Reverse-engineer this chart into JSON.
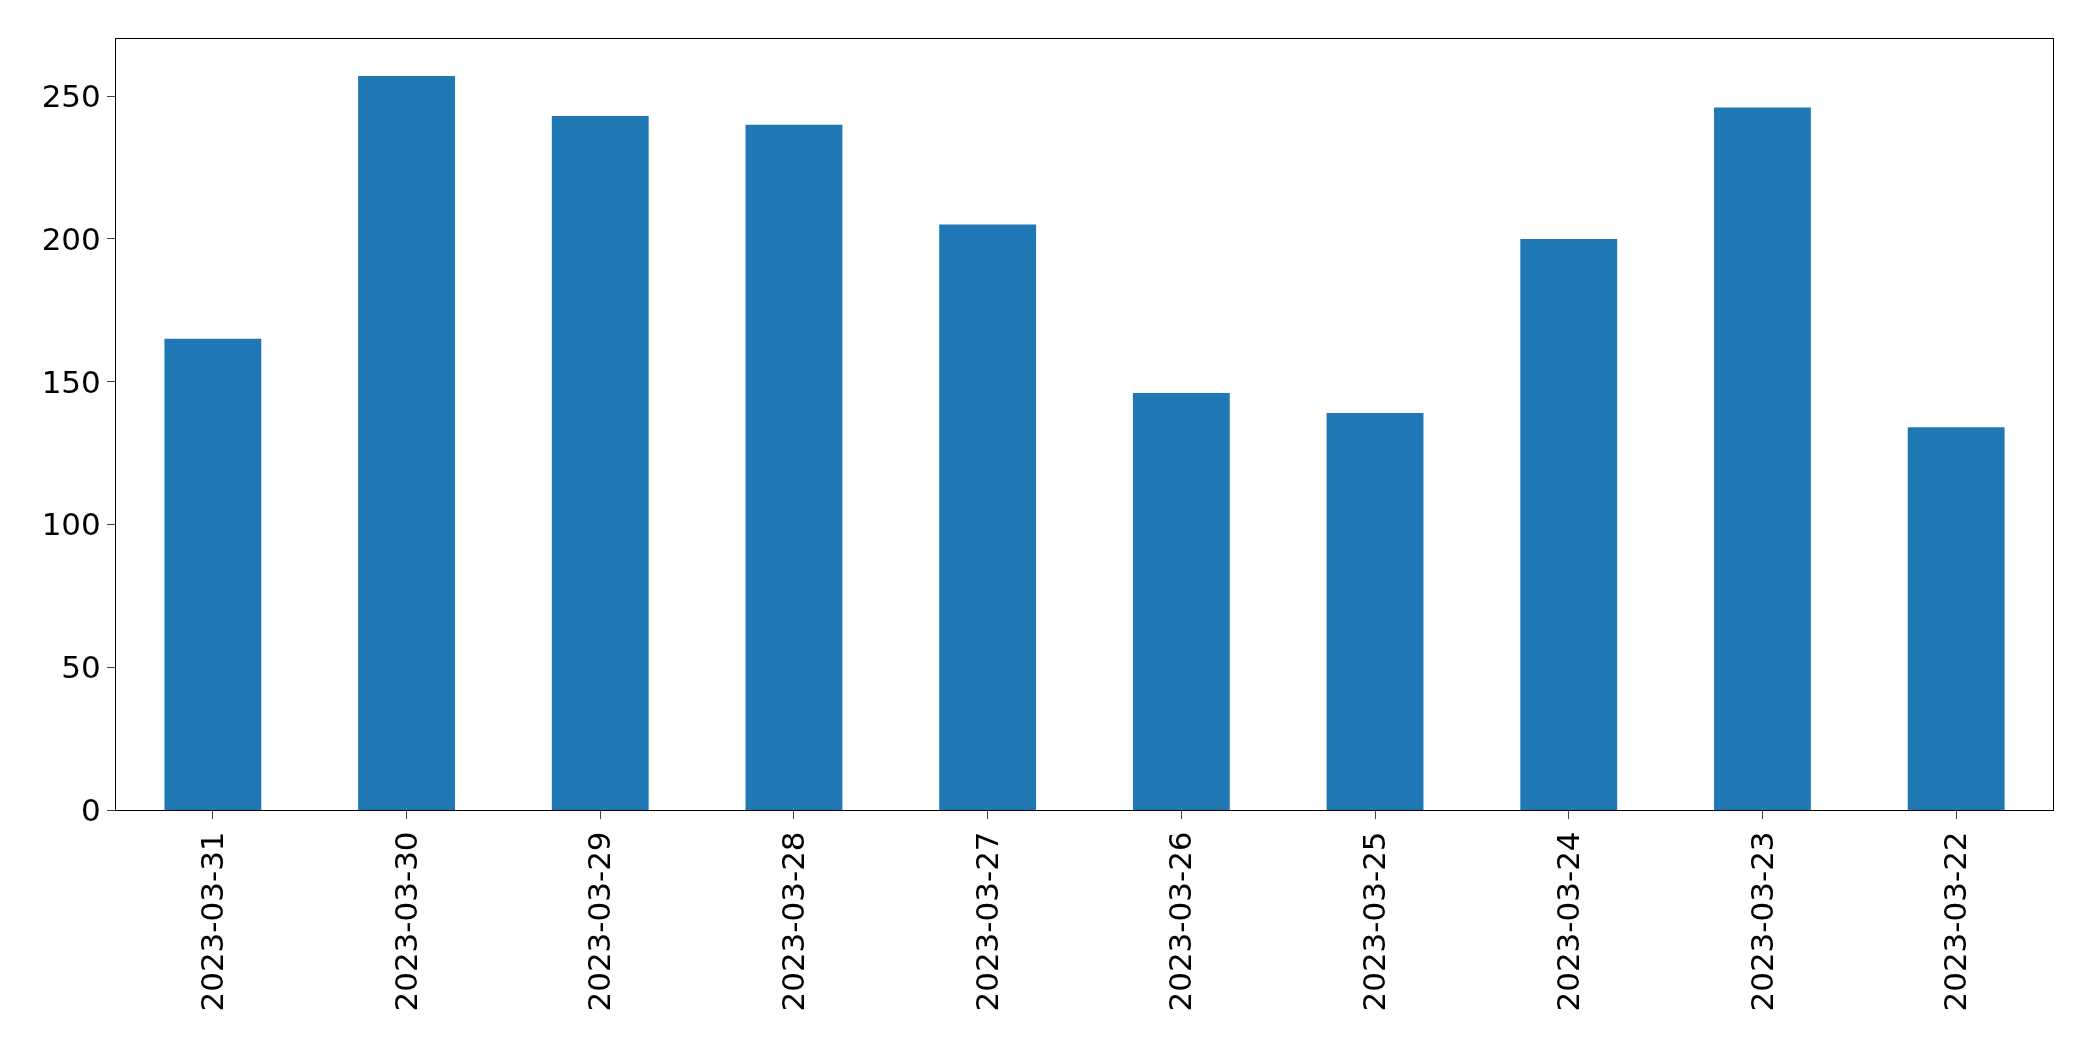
{
  "chart_data": {
    "type": "bar",
    "categories": [
      "2023-03-31",
      "2023-03-30",
      "2023-03-29",
      "2023-03-28",
      "2023-03-27",
      "2023-03-26",
      "2023-03-25",
      "2023-03-24",
      "2023-03-23",
      "2023-03-22"
    ],
    "values": [
      165,
      257,
      243,
      240,
      205,
      146,
      139,
      200,
      246,
      134
    ],
    "color": "#1f77b4",
    "ylim": [
      0,
      270
    ],
    "yticks": [
      0,
      50,
      100,
      150,
      200,
      250
    ]
  }
}
